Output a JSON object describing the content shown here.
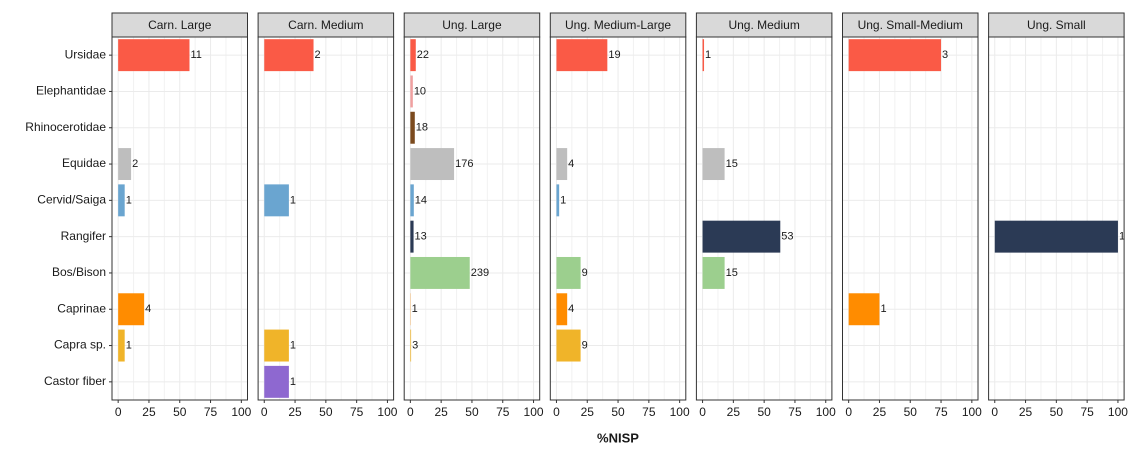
{
  "chart_data": {
    "type": "bar",
    "orientation": "horizontal",
    "xlabel": "%NISP",
    "categories": [
      "Ursidae",
      "Elephantidae",
      "Rhinocerotidae",
      "Equidae",
      "Cervid/Saiga",
      "Rangifer",
      "Bos/Bison",
      "Caprinae",
      "Capra sp.",
      "Castor fiber"
    ],
    "colors": [
      "#fa5a46",
      "#f0a0a0",
      "#7b4a1e",
      "#bebebe",
      "#6aa5d0",
      "#2b3a55",
      "#9ccf8e",
      "#ff8c00",
      "#f0b429",
      "#8e68d0"
    ],
    "xlim": [
      -5,
      105
    ],
    "xticks": [
      0,
      25,
      50,
      75,
      100
    ],
    "grid": true,
    "facets": [
      {
        "title": "Carn. Large",
        "values": [
          57.9,
          null,
          null,
          10.5,
          5.3,
          null,
          null,
          21.1,
          5.3,
          null
        ],
        "counts": [
          11,
          null,
          null,
          2,
          1,
          null,
          null,
          4,
          1,
          null
        ]
      },
      {
        "title": "Carn. Medium",
        "values": [
          40,
          null,
          null,
          null,
          20,
          null,
          null,
          null,
          20,
          20
        ],
        "counts": [
          2,
          null,
          null,
          null,
          1,
          null,
          null,
          null,
          1,
          1
        ]
      },
      {
        "title": "Ung. Large",
        "values": [
          4.4,
          2.0,
          3.6,
          35.5,
          2.8,
          2.6,
          48.2,
          0.2,
          0.6,
          null
        ],
        "counts": [
          22,
          10,
          18,
          176,
          14,
          13,
          239,
          1,
          3,
          null
        ]
      },
      {
        "title": "Ung. Medium-Large",
        "values": [
          41.3,
          null,
          null,
          8.7,
          2.2,
          null,
          19.6,
          8.7,
          19.6,
          null
        ],
        "counts": [
          19,
          null,
          null,
          4,
          1,
          null,
          9,
          4,
          9,
          null
        ]
      },
      {
        "title": "Ung. Medium",
        "values": [
          1.2,
          null,
          null,
          17.9,
          null,
          63.1,
          17.9,
          null,
          null,
          null
        ],
        "counts": [
          1,
          null,
          null,
          15,
          null,
          53,
          15,
          null,
          null,
          null
        ]
      },
      {
        "title": "Ung. Small-Medium",
        "values": [
          75,
          null,
          null,
          null,
          null,
          null,
          null,
          25,
          null,
          null
        ],
        "counts": [
          3,
          null,
          null,
          null,
          null,
          null,
          null,
          1,
          null,
          null
        ]
      },
      {
        "title": "Ung. Small",
        "values": [
          null,
          null,
          null,
          null,
          null,
          100,
          null,
          null,
          null,
          null
        ],
        "counts": [
          null,
          null,
          null,
          null,
          null,
          1,
          null,
          null,
          null,
          null
        ]
      }
    ]
  }
}
